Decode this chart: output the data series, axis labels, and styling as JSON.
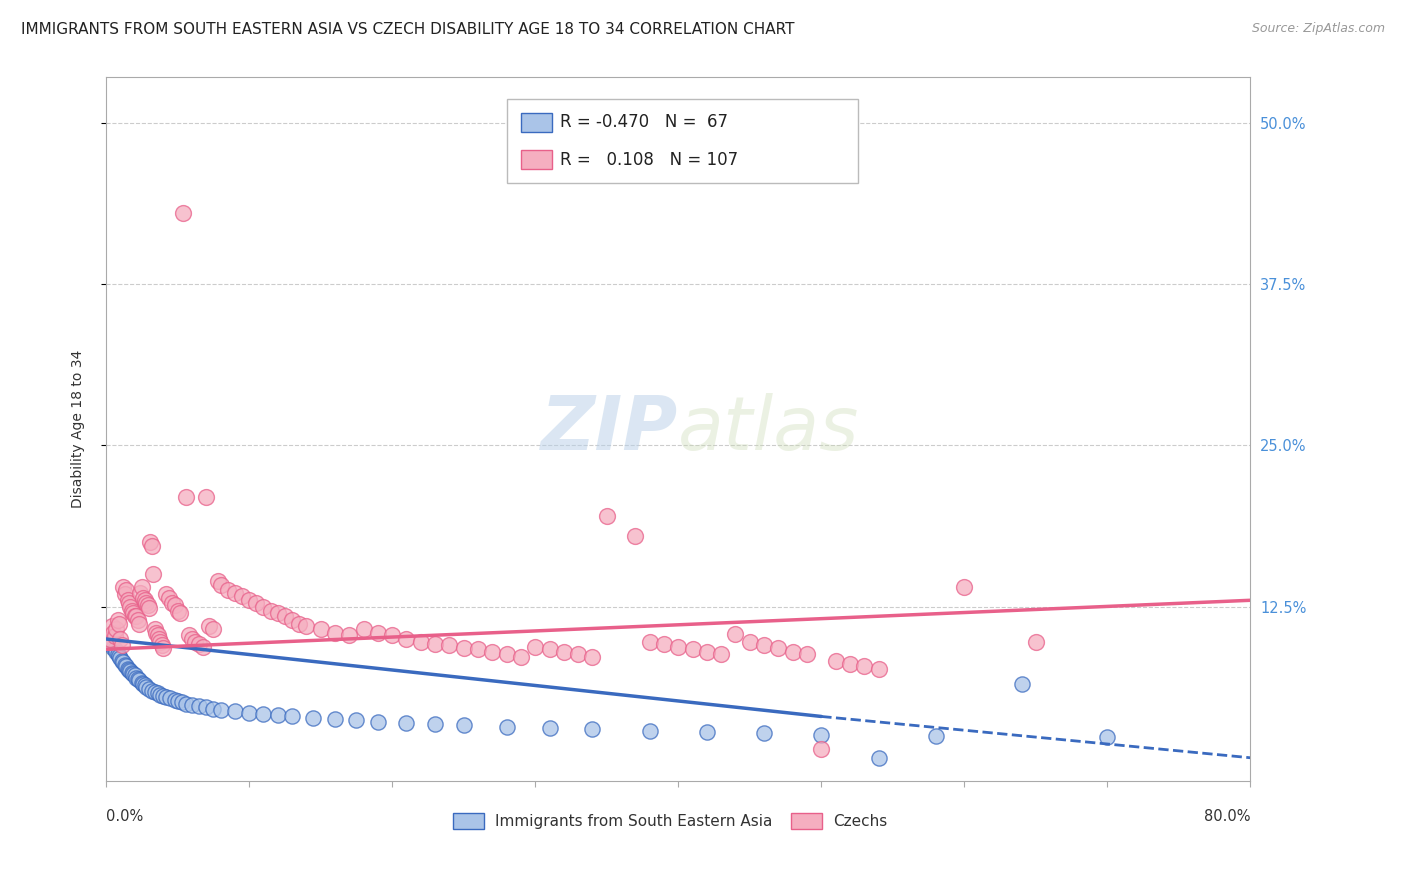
{
  "title": "IMMIGRANTS FROM SOUTH EASTERN ASIA VS CZECH DISABILITY AGE 18 TO 34 CORRELATION CHART",
  "source": "Source: ZipAtlas.com",
  "ylabel": "Disability Age 18 to 34",
  "ytick_labels": [
    "50.0%",
    "37.5%",
    "25.0%",
    "12.5%"
  ],
  "ytick_values": [
    0.5,
    0.375,
    0.25,
    0.125
  ],
  "xmin": 0.0,
  "xmax": 0.8,
  "ymin": -0.01,
  "ymax": 0.535,
  "blue_color": "#aac4e8",
  "pink_color": "#f5aec0",
  "blue_line_color": "#3a6abf",
  "pink_line_color": "#e8608a",
  "legend_label_blue": "Immigrants from South Eastern Asia",
  "legend_label_pink": "Czechs",
  "watermark_zip": "ZIP",
  "watermark_atlas": "atlas",
  "background_color": "#ffffff",
  "blue_scatter": [
    [
      0.001,
      0.1
    ],
    [
      0.002,
      0.098
    ],
    [
      0.003,
      0.096
    ],
    [
      0.004,
      0.095
    ],
    [
      0.005,
      0.093
    ],
    [
      0.006,
      0.092
    ],
    [
      0.007,
      0.09
    ],
    [
      0.008,
      0.088
    ],
    [
      0.009,
      0.087
    ],
    [
      0.01,
      0.085
    ],
    [
      0.011,
      0.083
    ],
    [
      0.012,
      0.082
    ],
    [
      0.013,
      0.08
    ],
    [
      0.014,
      0.079
    ],
    [
      0.015,
      0.077
    ],
    [
      0.016,
      0.076
    ],
    [
      0.017,
      0.075
    ],
    [
      0.018,
      0.074
    ],
    [
      0.019,
      0.073
    ],
    [
      0.02,
      0.072
    ],
    [
      0.021,
      0.07
    ],
    [
      0.022,
      0.069
    ],
    [
      0.023,
      0.068
    ],
    [
      0.025,
      0.066
    ],
    [
      0.026,
      0.065
    ],
    [
      0.027,
      0.064
    ],
    [
      0.028,
      0.063
    ],
    [
      0.03,
      0.061
    ],
    [
      0.032,
      0.06
    ],
    [
      0.034,
      0.059
    ],
    [
      0.036,
      0.058
    ],
    [
      0.038,
      0.057
    ],
    [
      0.04,
      0.056
    ],
    [
      0.042,
      0.055
    ],
    [
      0.045,
      0.054
    ],
    [
      0.048,
      0.053
    ],
    [
      0.05,
      0.052
    ],
    [
      0.053,
      0.051
    ],
    [
      0.056,
      0.05
    ],
    [
      0.06,
      0.049
    ],
    [
      0.065,
      0.048
    ],
    [
      0.07,
      0.047
    ],
    [
      0.075,
      0.046
    ],
    [
      0.08,
      0.045
    ],
    [
      0.09,
      0.044
    ],
    [
      0.1,
      0.043
    ],
    [
      0.11,
      0.042
    ],
    [
      0.12,
      0.041
    ],
    [
      0.13,
      0.04
    ],
    [
      0.145,
      0.039
    ],
    [
      0.16,
      0.038
    ],
    [
      0.175,
      0.037
    ],
    [
      0.19,
      0.036
    ],
    [
      0.21,
      0.035
    ],
    [
      0.23,
      0.034
    ],
    [
      0.25,
      0.033
    ],
    [
      0.28,
      0.032
    ],
    [
      0.31,
      0.031
    ],
    [
      0.34,
      0.03
    ],
    [
      0.38,
      0.029
    ],
    [
      0.42,
      0.028
    ],
    [
      0.46,
      0.027
    ],
    [
      0.5,
      0.026
    ],
    [
      0.54,
      0.008
    ],
    [
      0.58,
      0.025
    ],
    [
      0.64,
      0.065
    ],
    [
      0.7,
      0.024
    ]
  ],
  "pink_scatter": [
    [
      0.001,
      0.098
    ],
    [
      0.003,
      0.1
    ],
    [
      0.004,
      0.11
    ],
    [
      0.005,
      0.105
    ],
    [
      0.006,
      0.102
    ],
    [
      0.007,
      0.108
    ],
    [
      0.008,
      0.115
    ],
    [
      0.009,
      0.112
    ],
    [
      0.01,
      0.1
    ],
    [
      0.011,
      0.095
    ],
    [
      0.012,
      0.14
    ],
    [
      0.013,
      0.135
    ],
    [
      0.014,
      0.138
    ],
    [
      0.015,
      0.13
    ],
    [
      0.016,
      0.128
    ],
    [
      0.017,
      0.125
    ],
    [
      0.018,
      0.122
    ],
    [
      0.019,
      0.12
    ],
    [
      0.02,
      0.118
    ],
    [
      0.021,
      0.118
    ],
    [
      0.022,
      0.115
    ],
    [
      0.023,
      0.112
    ],
    [
      0.024,
      0.136
    ],
    [
      0.025,
      0.14
    ],
    [
      0.026,
      0.132
    ],
    [
      0.027,
      0.13
    ],
    [
      0.028,
      0.128
    ],
    [
      0.029,
      0.126
    ],
    [
      0.03,
      0.124
    ],
    [
      0.031,
      0.175
    ],
    [
      0.032,
      0.172
    ],
    [
      0.033,
      0.15
    ],
    [
      0.034,
      0.108
    ],
    [
      0.035,
      0.105
    ],
    [
      0.036,
      0.103
    ],
    [
      0.037,
      0.1
    ],
    [
      0.038,
      0.098
    ],
    [
      0.039,
      0.095
    ],
    [
      0.04,
      0.093
    ],
    [
      0.042,
      0.135
    ],
    [
      0.044,
      0.132
    ],
    [
      0.046,
      0.128
    ],
    [
      0.048,
      0.126
    ],
    [
      0.05,
      0.122
    ],
    [
      0.052,
      0.12
    ],
    [
      0.054,
      0.43
    ],
    [
      0.056,
      0.21
    ],
    [
      0.058,
      0.103
    ],
    [
      0.06,
      0.1
    ],
    [
      0.062,
      0.098
    ],
    [
      0.065,
      0.096
    ],
    [
      0.068,
      0.094
    ],
    [
      0.07,
      0.21
    ],
    [
      0.072,
      0.11
    ],
    [
      0.075,
      0.108
    ],
    [
      0.078,
      0.145
    ],
    [
      0.08,
      0.142
    ],
    [
      0.085,
      0.138
    ],
    [
      0.09,
      0.136
    ],
    [
      0.095,
      0.133
    ],
    [
      0.1,
      0.13
    ],
    [
      0.105,
      0.128
    ],
    [
      0.11,
      0.125
    ],
    [
      0.115,
      0.122
    ],
    [
      0.12,
      0.12
    ],
    [
      0.125,
      0.118
    ],
    [
      0.13,
      0.115
    ],
    [
      0.135,
      0.112
    ],
    [
      0.14,
      0.11
    ],
    [
      0.15,
      0.108
    ],
    [
      0.16,
      0.105
    ],
    [
      0.17,
      0.103
    ],
    [
      0.18,
      0.108
    ],
    [
      0.19,
      0.105
    ],
    [
      0.2,
      0.103
    ],
    [
      0.21,
      0.1
    ],
    [
      0.22,
      0.098
    ],
    [
      0.23,
      0.096
    ],
    [
      0.24,
      0.095
    ],
    [
      0.25,
      0.093
    ],
    [
      0.26,
      0.092
    ],
    [
      0.27,
      0.09
    ],
    [
      0.28,
      0.088
    ],
    [
      0.29,
      0.086
    ],
    [
      0.3,
      0.094
    ],
    [
      0.31,
      0.092
    ],
    [
      0.32,
      0.09
    ],
    [
      0.33,
      0.088
    ],
    [
      0.34,
      0.086
    ],
    [
      0.35,
      0.195
    ],
    [
      0.37,
      0.18
    ],
    [
      0.38,
      0.098
    ],
    [
      0.39,
      0.096
    ],
    [
      0.4,
      0.094
    ],
    [
      0.41,
      0.092
    ],
    [
      0.42,
      0.09
    ],
    [
      0.43,
      0.088
    ],
    [
      0.44,
      0.104
    ],
    [
      0.45,
      0.098
    ],
    [
      0.46,
      0.095
    ],
    [
      0.47,
      0.093
    ],
    [
      0.48,
      0.09
    ],
    [
      0.49,
      0.088
    ],
    [
      0.5,
      0.015
    ],
    [
      0.51,
      0.083
    ],
    [
      0.52,
      0.081
    ],
    [
      0.53,
      0.079
    ],
    [
      0.54,
      0.077
    ],
    [
      0.6,
      0.14
    ],
    [
      0.65,
      0.098
    ]
  ],
  "blue_trend_x0": 0.0,
  "blue_trend_x_solid_end": 0.5,
  "blue_trend_x_dashed_end": 0.8,
  "blue_trend_y0": 0.1,
  "blue_trend_y_solid_end": 0.04,
  "blue_trend_y_dashed_end": 0.008,
  "pink_trend_x0": 0.0,
  "pink_trend_x_end": 0.8,
  "pink_trend_y0": 0.092,
  "pink_trend_y_end": 0.13,
  "grid_color": "#cccccc",
  "axis_color": "#aaaaaa",
  "right_axis_color": "#4a90d9",
  "title_fontsize": 11,
  "tick_fontsize": 10.5,
  "legend_fontsize": 12
}
